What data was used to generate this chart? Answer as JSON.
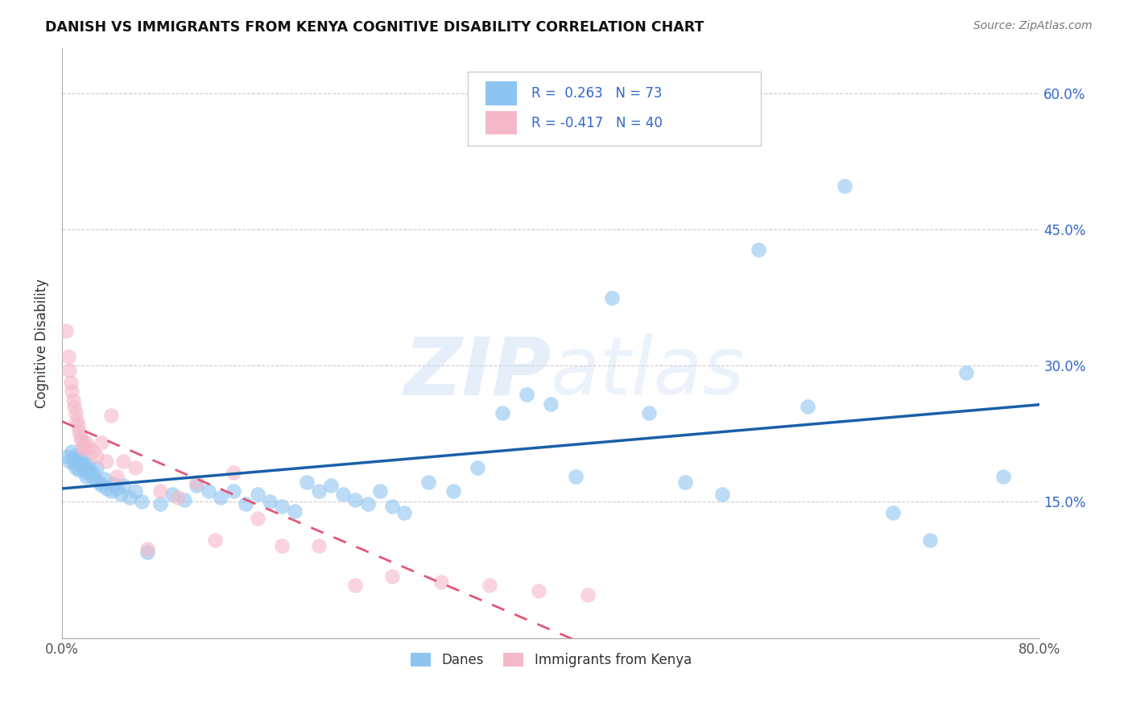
{
  "title": "DANISH VS IMMIGRANTS FROM KENYA COGNITIVE DISABILITY CORRELATION CHART",
  "source": "Source: ZipAtlas.com",
  "ylabel": "Cognitive Disability",
  "xlim": [
    0.0,
    0.8
  ],
  "ylim": [
    0.0,
    0.65
  ],
  "xticks": [
    0.0,
    0.1,
    0.2,
    0.3,
    0.4,
    0.5,
    0.6,
    0.7,
    0.8
  ],
  "ytick_positions": [
    0.15,
    0.3,
    0.45,
    0.6
  ],
  "ytick_labels": [
    "15.0%",
    "30.0%",
    "45.0%",
    "60.0%"
  ],
  "danes_color": "#8ec4f0",
  "kenya_color": "#f5b8c8",
  "danes_line_color": "#1a5fa8",
  "kenya_line_color": "#e05878",
  "R_danes": 0.263,
  "N_danes": 73,
  "R_kenya": -0.417,
  "N_kenya": 40,
  "legend_label_danes": "Danes",
  "legend_label_kenya": "Immigrants from Kenya",
  "watermark_zip": "ZIP",
  "watermark_atlas": "atlas",
  "danes_x": [
    0.004,
    0.006,
    0.008,
    0.009,
    0.01,
    0.011,
    0.012,
    0.013,
    0.014,
    0.015,
    0.016,
    0.017,
    0.018,
    0.019,
    0.02,
    0.021,
    0.022,
    0.024,
    0.025,
    0.027,
    0.028,
    0.03,
    0.032,
    0.035,
    0.037,
    0.04,
    0.042,
    0.045,
    0.048,
    0.05,
    0.055,
    0.06,
    0.065,
    0.07,
    0.08,
    0.09,
    0.1,
    0.11,
    0.12,
    0.13,
    0.14,
    0.15,
    0.16,
    0.17,
    0.18,
    0.19,
    0.2,
    0.21,
    0.22,
    0.23,
    0.24,
    0.25,
    0.26,
    0.27,
    0.28,
    0.3,
    0.32,
    0.34,
    0.36,
    0.38,
    0.4,
    0.42,
    0.45,
    0.48,
    0.51,
    0.54,
    0.57,
    0.61,
    0.64,
    0.68,
    0.71,
    0.74,
    0.77
  ],
  "danes_y": [
    0.2,
    0.195,
    0.205,
    0.198,
    0.192,
    0.188,
    0.202,
    0.195,
    0.185,
    0.2,
    0.192,
    0.188,
    0.195,
    0.182,
    0.178,
    0.19,
    0.185,
    0.178,
    0.182,
    0.175,
    0.188,
    0.172,
    0.168,
    0.175,
    0.165,
    0.162,
    0.17,
    0.165,
    0.158,
    0.168,
    0.155,
    0.162,
    0.15,
    0.095,
    0.148,
    0.158,
    0.152,
    0.168,
    0.162,
    0.155,
    0.162,
    0.148,
    0.158,
    0.15,
    0.145,
    0.14,
    0.172,
    0.162,
    0.168,
    0.158,
    0.152,
    0.148,
    0.162,
    0.145,
    0.138,
    0.172,
    0.162,
    0.188,
    0.248,
    0.268,
    0.258,
    0.178,
    0.375,
    0.248,
    0.172,
    0.158,
    0.428,
    0.255,
    0.498,
    0.138,
    0.108,
    0.292,
    0.178
  ],
  "kenya_x": [
    0.003,
    0.005,
    0.006,
    0.007,
    0.008,
    0.009,
    0.01,
    0.011,
    0.012,
    0.013,
    0.014,
    0.015,
    0.016,
    0.017,
    0.018,
    0.02,
    0.022,
    0.025,
    0.028,
    0.032,
    0.036,
    0.04,
    0.045,
    0.05,
    0.06,
    0.07,
    0.08,
    0.095,
    0.11,
    0.125,
    0.14,
    0.16,
    0.18,
    0.21,
    0.24,
    0.27,
    0.31,
    0.35,
    0.39,
    0.43
  ],
  "kenya_y": [
    0.338,
    0.31,
    0.295,
    0.282,
    0.272,
    0.262,
    0.255,
    0.248,
    0.24,
    0.235,
    0.228,
    0.222,
    0.218,
    0.212,
    0.208,
    0.215,
    0.21,
    0.205,
    0.2,
    0.215,
    0.195,
    0.245,
    0.178,
    0.195,
    0.188,
    0.098,
    0.162,
    0.155,
    0.172,
    0.108,
    0.182,
    0.132,
    0.102,
    0.102,
    0.058,
    0.068,
    0.062,
    0.058,
    0.052,
    0.048
  ]
}
